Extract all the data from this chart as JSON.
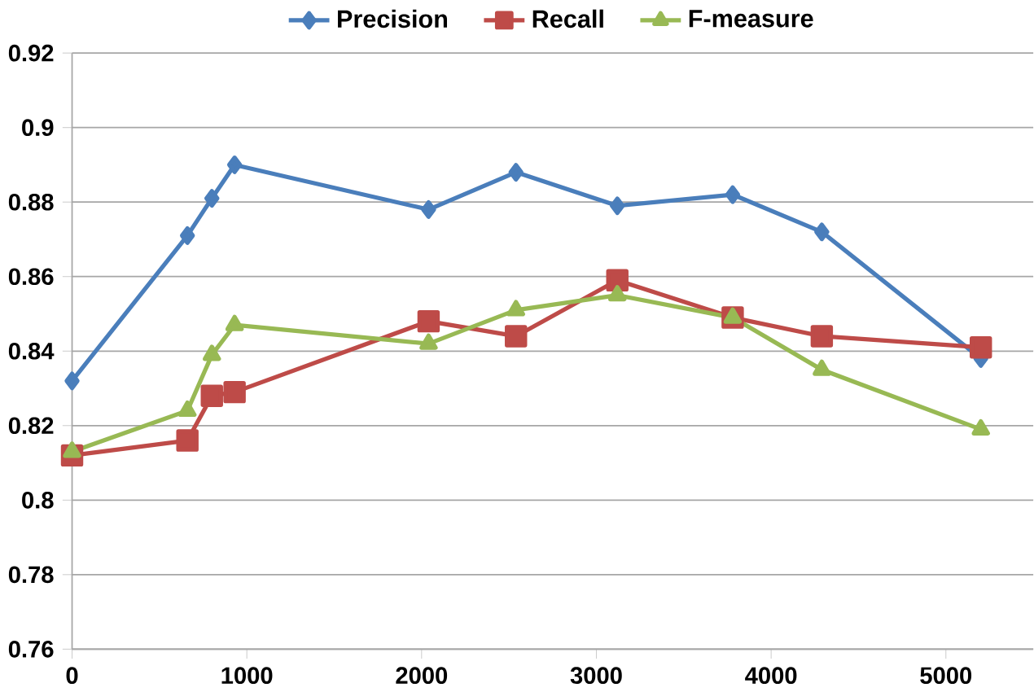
{
  "chart_data": {
    "type": "line",
    "xlim": [
      0,
      5500
    ],
    "xticks": [
      0,
      1000,
      2000,
      3000,
      4000,
      5000
    ],
    "ylim": [
      0.76,
      0.92
    ],
    "yticks": [
      0.76,
      0.78,
      0.8,
      0.82,
      0.84,
      0.86,
      0.88,
      0.9,
      0.92
    ],
    "grid": "y",
    "legend": "top",
    "x": [
      0,
      660,
      800,
      930,
      2040,
      2540,
      3120,
      3780,
      4290,
      5200
    ],
    "series": [
      {
        "name": "Precision",
        "color": "#4a7ebb",
        "marker": "diamond",
        "values": [
          0.832,
          0.871,
          0.881,
          0.89,
          0.878,
          0.888,
          0.879,
          0.882,
          0.872,
          0.838
        ]
      },
      {
        "name": "Recall",
        "color": "#be4b48",
        "marker": "square",
        "values": [
          0.812,
          0.816,
          0.828,
          0.829,
          0.848,
          0.844,
          0.859,
          0.849,
          0.844,
          0.841
        ]
      },
      {
        "name": "F-measure",
        "color": "#98b954",
        "marker": "triangle",
        "values": [
          0.813,
          0.824,
          0.839,
          0.847,
          0.842,
          0.851,
          0.855,
          0.849,
          0.835,
          0.819
        ]
      }
    ]
  }
}
